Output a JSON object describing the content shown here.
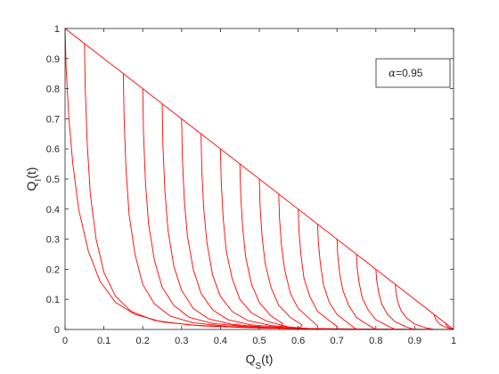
{
  "chart_data": {
    "type": "line",
    "title": "",
    "xlabel": "Q_S(t)",
    "xlabel_parts": {
      "base": "Q",
      "sub": "S",
      "rest": "(t)"
    },
    "ylabel": "Q_I(t)",
    "ylabel_parts": {
      "base": "Q",
      "sub": "I",
      "rest": "(t)"
    },
    "xlim": [
      0,
      1
    ],
    "ylim": [
      0,
      1
    ],
    "xticks": [
      0,
      0.1,
      0.2,
      0.3,
      0.4,
      0.5,
      0.6,
      0.7,
      0.8,
      0.9,
      1
    ],
    "xtick_labels": [
      "0",
      "0.1",
      "0.2",
      "0.3",
      "0.4",
      "0.5",
      "0.6",
      "0.7",
      "0.8",
      "0.9",
      "1"
    ],
    "yticks": [
      0,
      0.1,
      0.2,
      0.3,
      0.4,
      0.5,
      0.6,
      0.7,
      0.8,
      0.9,
      1
    ],
    "ytick_labels": [
      "0",
      "0.1",
      "0.2",
      "0.3",
      "0.4",
      "0.5",
      "0.6",
      "0.7",
      "0.8",
      "0.9",
      "1"
    ],
    "grid": false,
    "line_color": "#ff0000",
    "legend": {
      "symbol": "α",
      "text": "=0.95",
      "placement": "top-right"
    },
    "diagonal": {
      "x": [
        0,
        1
      ],
      "y": [
        1,
        0
      ]
    },
    "trajectories": [
      {
        "x": [
          0,
          0.003,
          0.01,
          0.02,
          0.035,
          0.06,
          0.09,
          0.13,
          0.18,
          0.25,
          0.35,
          0.5,
          0.7,
          0.9,
          1
        ],
        "y": [
          1,
          0.86,
          0.7,
          0.55,
          0.4,
          0.26,
          0.16,
          0.09,
          0.05,
          0.025,
          0.012,
          0.005,
          0.002,
          0.001,
          0
        ]
      },
      {
        "x": [
          0.05,
          0.052,
          0.057,
          0.065,
          0.08,
          0.1,
          0.13,
          0.17,
          0.23,
          0.32,
          0.45,
          0.6,
          0.8,
          0.95
        ],
        "y": [
          0.95,
          0.8,
          0.62,
          0.45,
          0.3,
          0.19,
          0.11,
          0.06,
          0.03,
          0.015,
          0.007,
          0.003,
          0.001,
          0
        ]
      },
      {
        "x": [
          0.15,
          0.152,
          0.157,
          0.165,
          0.18,
          0.2,
          0.23,
          0.27,
          0.33,
          0.42,
          0.55,
          0.7,
          0.85
        ],
        "y": [
          0.85,
          0.7,
          0.53,
          0.38,
          0.25,
          0.15,
          0.085,
          0.045,
          0.022,
          0.01,
          0.004,
          0.001,
          0
        ]
      },
      {
        "x": [
          0.2,
          0.202,
          0.207,
          0.215,
          0.23,
          0.25,
          0.28,
          0.32,
          0.38,
          0.47,
          0.6,
          0.8
        ],
        "y": [
          0.8,
          0.65,
          0.49,
          0.35,
          0.23,
          0.14,
          0.08,
          0.04,
          0.02,
          0.009,
          0.003,
          0
        ]
      },
      {
        "x": [
          0.25,
          0.252,
          0.257,
          0.265,
          0.28,
          0.3,
          0.33,
          0.37,
          0.43,
          0.52,
          0.65,
          0.75
        ],
        "y": [
          0.75,
          0.61,
          0.46,
          0.33,
          0.21,
          0.13,
          0.07,
          0.035,
          0.017,
          0.007,
          0.002,
          0
        ]
      },
      {
        "x": [
          0.3,
          0.302,
          0.307,
          0.315,
          0.33,
          0.35,
          0.38,
          0.42,
          0.48,
          0.57,
          0.7
        ],
        "y": [
          0.7,
          0.57,
          0.43,
          0.31,
          0.2,
          0.12,
          0.065,
          0.032,
          0.015,
          0.006,
          0
        ]
      },
      {
        "x": [
          0.35,
          0.352,
          0.357,
          0.365,
          0.38,
          0.4,
          0.43,
          0.47,
          0.53,
          0.62,
          0.65
        ],
        "y": [
          0.65,
          0.53,
          0.4,
          0.29,
          0.18,
          0.11,
          0.06,
          0.03,
          0.013,
          0.004,
          0
        ]
      },
      {
        "x": [
          0.4,
          0.402,
          0.407,
          0.415,
          0.43,
          0.45,
          0.48,
          0.52,
          0.57,
          0.6
        ],
        "y": [
          0.6,
          0.49,
          0.37,
          0.26,
          0.17,
          0.1,
          0.055,
          0.027,
          0.01,
          0
        ]
      },
      {
        "x": [
          0.45,
          0.452,
          0.457,
          0.465,
          0.48,
          0.5,
          0.53,
          0.56,
          0.55
        ],
        "y": [
          0.55,
          0.45,
          0.34,
          0.24,
          0.15,
          0.09,
          0.045,
          0.02,
          0
        ]
      },
      {
        "x": [
          0.5,
          0.502,
          0.507,
          0.515,
          0.53,
          0.55,
          0.58,
          0.61,
          0.6
        ],
        "y": [
          0.5,
          0.41,
          0.31,
          0.22,
          0.14,
          0.08,
          0.04,
          0.015,
          0
        ]
      },
      {
        "x": [
          0.55,
          0.552,
          0.557,
          0.565,
          0.58,
          0.6,
          0.63,
          0.65,
          0.65
        ],
        "y": [
          0.45,
          0.37,
          0.28,
          0.2,
          0.12,
          0.07,
          0.035,
          0.012,
          0
        ]
      },
      {
        "x": [
          0.6,
          0.602,
          0.607,
          0.615,
          0.63,
          0.65,
          0.68,
          0.7,
          0.7
        ],
        "y": [
          0.4,
          0.33,
          0.25,
          0.17,
          0.11,
          0.06,
          0.03,
          0.01,
          0
        ]
      },
      {
        "x": [
          0.65,
          0.652,
          0.657,
          0.665,
          0.68,
          0.7,
          0.73,
          0.75
        ],
        "y": [
          0.35,
          0.29,
          0.22,
          0.15,
          0.09,
          0.05,
          0.02,
          0
        ]
      },
      {
        "x": [
          0.7,
          0.702,
          0.707,
          0.715,
          0.73,
          0.75,
          0.78,
          0.8
        ],
        "y": [
          0.3,
          0.245,
          0.185,
          0.13,
          0.08,
          0.04,
          0.015,
          0
        ]
      },
      {
        "x": [
          0.75,
          0.752,
          0.757,
          0.765,
          0.78,
          0.8,
          0.83,
          0.85
        ],
        "y": [
          0.25,
          0.205,
          0.155,
          0.105,
          0.065,
          0.033,
          0.012,
          0
        ]
      },
      {
        "x": [
          0.8,
          0.802,
          0.807,
          0.815,
          0.83,
          0.85,
          0.88,
          0.9
        ],
        "y": [
          0.2,
          0.165,
          0.125,
          0.085,
          0.05,
          0.025,
          0.008,
          0
        ]
      },
      {
        "x": [
          0.85,
          0.852,
          0.857,
          0.865,
          0.88,
          0.9,
          0.93,
          0.95
        ],
        "y": [
          0.15,
          0.12,
          0.09,
          0.062,
          0.037,
          0.018,
          0.005,
          0
        ]
      },
      {
        "x": [
          0.95,
          0.952,
          0.957,
          0.965,
          0.98,
          1.0
        ],
        "y": [
          0.05,
          0.04,
          0.028,
          0.017,
          0.007,
          0
        ]
      },
      {
        "x": [
          0.98,
          0.982,
          0.99,
          1.0
        ],
        "y": [
          0.02,
          0.012,
          0.004,
          0
        ]
      }
    ]
  }
}
